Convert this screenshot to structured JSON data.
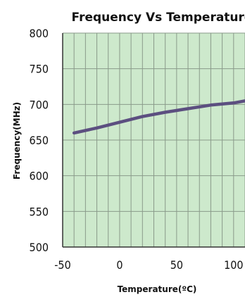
{
  "colors": {
    "plot_background": "#cde9cc",
    "grid": "#8a9a8a",
    "line": "#5c4f80",
    "text": "#111111"
  },
  "chart_data": {
    "type": "line",
    "title": "Frequency Vs  Temperature",
    "xlabel": "Temperature(ºC)",
    "ylabel": "Frequency(MHz)",
    "xlim": [
      -50,
      110
    ],
    "ylim": [
      500,
      800
    ],
    "xticks": [
      -50,
      0,
      50,
      100
    ],
    "xtick_labels": [
      "-50",
      "0",
      "50",
      "100"
    ],
    "yticks": [
      500,
      550,
      600,
      650,
      700,
      750,
      800
    ],
    "ytick_labels": [
      "500",
      "550",
      "600",
      "650",
      "700",
      "750",
      "800"
    ],
    "grid": true,
    "series": [
      {
        "x": [
          -40,
          -20,
          0,
          20,
          40,
          60,
          80,
          100,
          110
        ],
        "y": [
          660,
          667,
          675,
          683,
          689,
          694,
          699,
          702,
          705
        ]
      }
    ]
  }
}
